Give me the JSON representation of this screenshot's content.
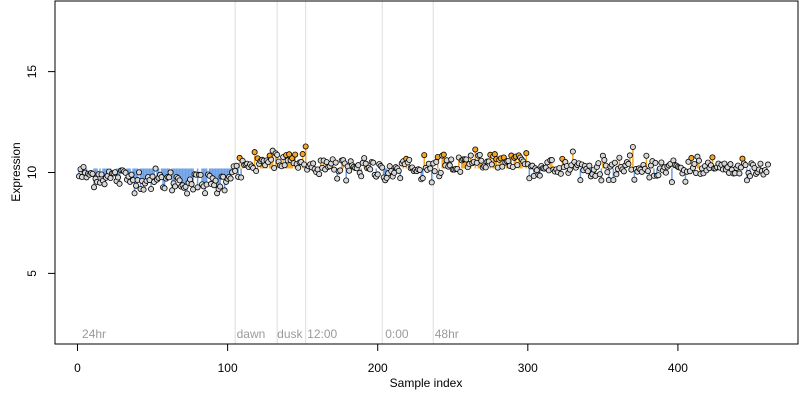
{
  "chart_data": {
    "type": "scatter",
    "xlabel": "Sample index",
    "ylabel": "Expression",
    "xlim": [
      -15,
      480
    ],
    "ylim": [
      1.5,
      18.5
    ],
    "x_ticks": [
      0,
      100,
      200,
      300,
      400
    ],
    "y_ticks": [
      5,
      10,
      15
    ],
    "baseline": 10.2,
    "vertical_lines": [
      105,
      133,
      152,
      203,
      237
    ],
    "annotations": [
      {
        "text": "24hr",
        "x": 3
      },
      {
        "text": "dawn",
        "x": 106
      },
      {
        "text": "dusk",
        "x": 133
      },
      {
        "text": "12:00",
        "x": 153
      },
      {
        "text": "0:00",
        "x": 205
      },
      {
        "text": "48hr",
        "x": 238
      }
    ],
    "colors": {
      "point_fill": "#d8d8d8",
      "point_edge": "#000000",
      "highlight": "#f5a623",
      "up_stem": "#f5a623",
      "down_stem": "#6b9fe6",
      "gridline": "#dddddd"
    },
    "n_points": 460,
    "segments": [
      {
        "start": 1,
        "end": 95,
        "level": 9.9,
        "trend": -0.5
      },
      {
        "start": 96,
        "end": 105,
        "level": 9.5,
        "trend": 0.8
      },
      {
        "start": 106,
        "end": 133,
        "level": 10.35,
        "trend": 0.3
      },
      {
        "start": 134,
        "end": 152,
        "level": 10.55,
        "trend": 0.0
      },
      {
        "start": 153,
        "end": 203,
        "level": 10.3,
        "trend": -0.2
      },
      {
        "start": 204,
        "end": 237,
        "level": 10.15,
        "trend": 0.0
      },
      {
        "start": 238,
        "end": 300,
        "level": 10.45,
        "trend": 0.2
      },
      {
        "start": 301,
        "end": 460,
        "level": 10.2,
        "trend": 0.0
      }
    ]
  }
}
